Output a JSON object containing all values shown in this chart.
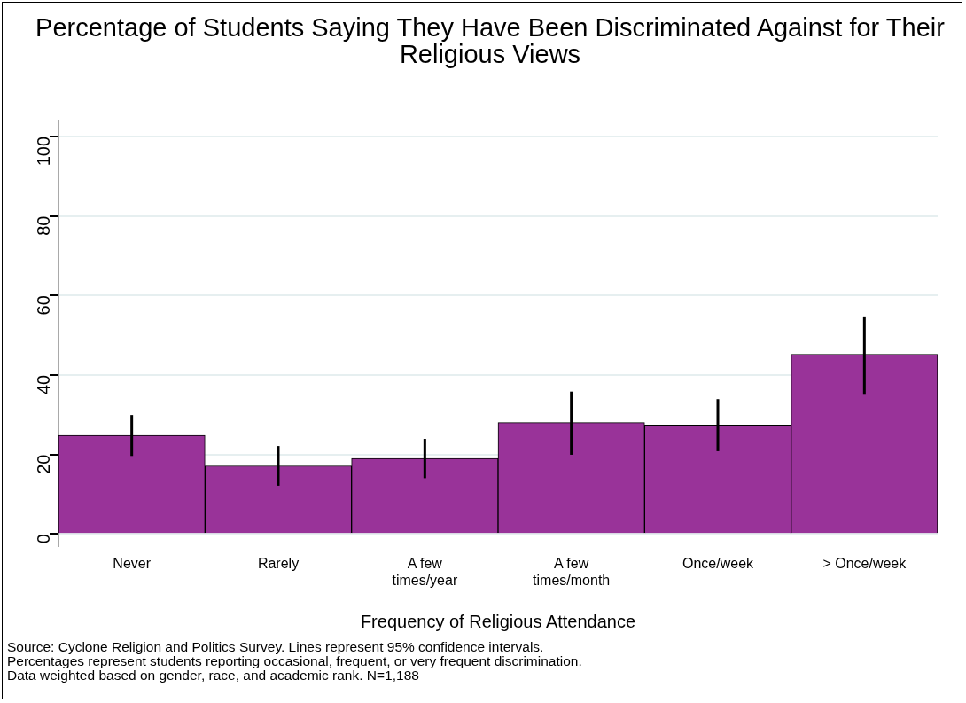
{
  "chart_data": {
    "type": "bar",
    "title": "Percentage of Students Saying They Have Been Discriminated Against for Their Religious Views",
    "xlabel": "Frequency of Religious Attendance",
    "categories": [
      "Never",
      "Rarely",
      "A few times/year",
      "A few times/month",
      "Once/week",
      "> Once/week"
    ],
    "values": [
      24.8,
      17.1,
      19.0,
      28.0,
      27.4,
      45.2
    ],
    "errors": [
      [
        19.6,
        29.9
      ],
      [
        12.1,
        22.1
      ],
      [
        14.0,
        23.9
      ],
      [
        19.9,
        35.8
      ],
      [
        20.8,
        33.9
      ],
      [
        35.0,
        54.5
      ]
    ],
    "color": "#993399",
    "ylim": [
      -3,
      104
    ],
    "yticks": [
      0,
      20,
      40,
      60,
      80,
      100
    ],
    "grid": "y",
    "legend": false,
    "annotations": [
      "Source: Cyclone Religion and Politics Survey. Lines represent 95% confidence intervals.",
      "Percentages represent students reporting occasional, frequent, or very frequent discrimination.",
      "Data weighted based on gender, race, and academic rank. N=1,188"
    ]
  }
}
